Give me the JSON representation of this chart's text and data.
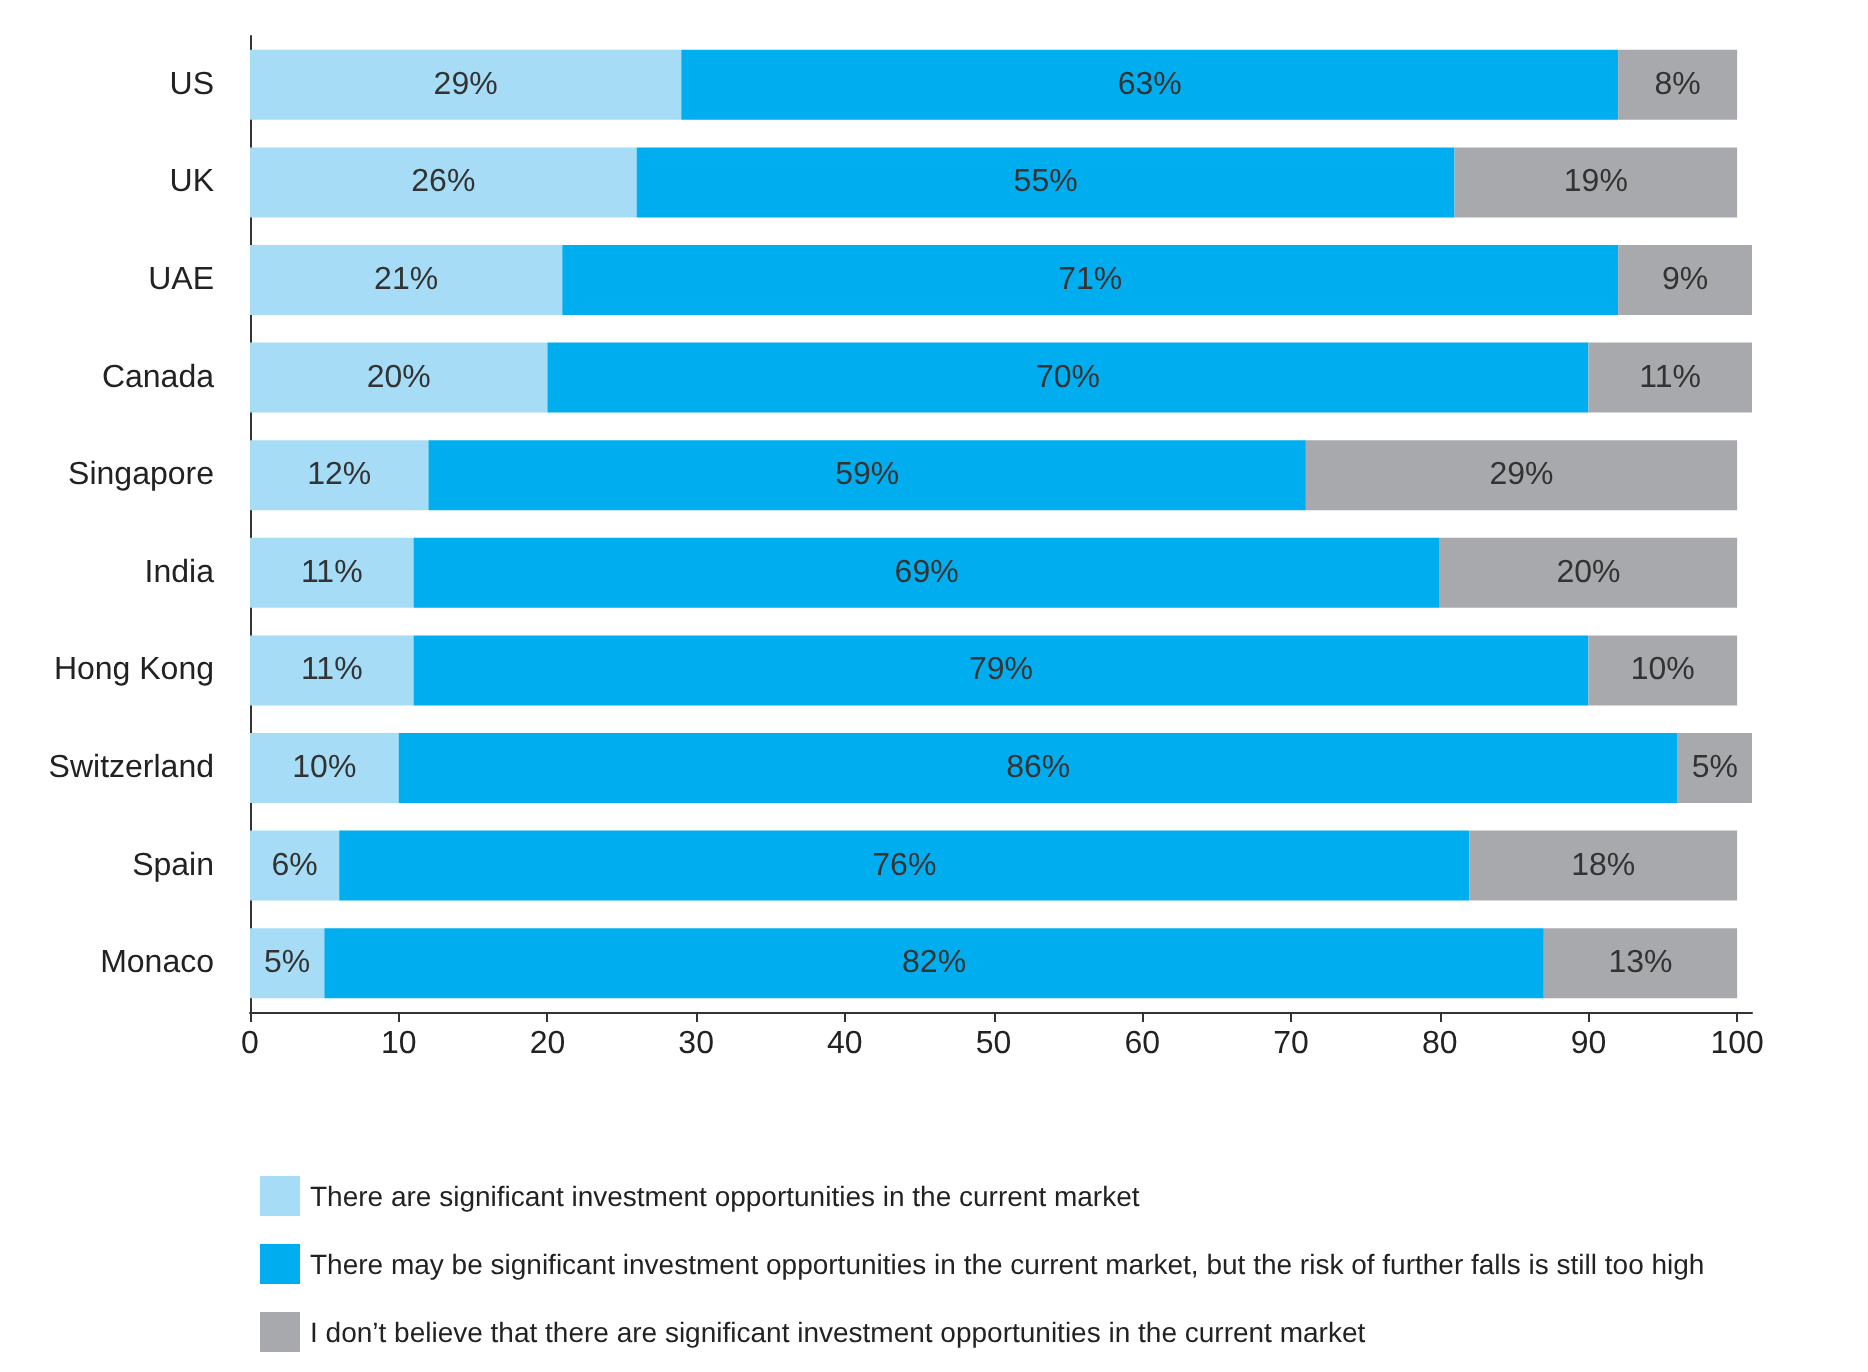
{
  "chart_data": {
    "type": "bar",
    "orientation": "horizontal",
    "stacked": true,
    "grid": false,
    "legend": "bottom",
    "categories": [
      "US",
      "UK",
      "UAE",
      "Canada",
      "Singapore",
      "India",
      "Hong Kong",
      "Switzerland",
      "Spain",
      "Monaco"
    ],
    "xlim": [
      0,
      101
    ],
    "xticks": [
      0,
      10,
      20,
      30,
      40,
      50,
      60,
      70,
      80,
      90,
      100
    ],
    "series": [
      {
        "name": "There are significant investment opportunities in the current market",
        "color": "#a6dcf5",
        "values": [
          29,
          26,
          21,
          20,
          12,
          11,
          11,
          10,
          6,
          5
        ],
        "value_labels": [
          "29%",
          "26%",
          "21%",
          "20%",
          "12%",
          "11%",
          "11%",
          "10%",
          "6%",
          "5%"
        ]
      },
      {
        "name": "There may be significant investment opportunities in the current market, but the risk of further falls is still too high",
        "color": "#00aeef",
        "values": [
          63,
          55,
          71,
          70,
          59,
          69,
          79,
          86,
          76,
          82
        ],
        "value_labels": [
          "63%",
          "55%",
          "71%",
          "70%",
          "59%",
          "69%",
          "79%",
          "86%",
          "76%",
          "82%"
        ]
      },
      {
        "name": "I don’t believe that there are significant investment opportunities in the current market",
        "color": "#a7a9ac",
        "values": [
          8,
          19,
          9,
          11,
          29,
          20,
          10,
          5,
          18,
          13
        ],
        "value_labels": [
          "8%",
          "19%",
          "9%",
          "11%",
          "29%",
          "20%",
          "10%",
          "5%",
          "18%",
          "13%"
        ]
      }
    ]
  }
}
